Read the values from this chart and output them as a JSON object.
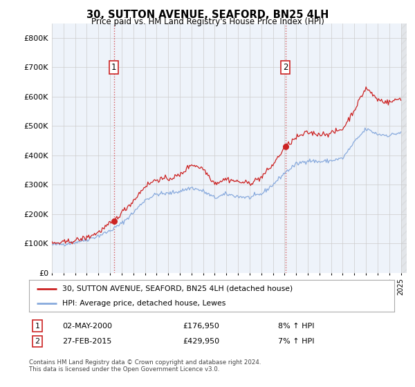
{
  "title": "30, SUTTON AVENUE, SEAFORD, BN25 4LH",
  "subtitle": "Price paid vs. HM Land Registry's House Price Index (HPI)",
  "legend_line1": "30, SUTTON AVENUE, SEAFORD, BN25 4LH (detached house)",
  "legend_line2": "HPI: Average price, detached house, Lewes",
  "annotation1_date": "02-MAY-2000",
  "annotation1_price": "£176,950",
  "annotation1_hpi": "8% ↑ HPI",
  "annotation2_date": "27-FEB-2015",
  "annotation2_price": "£429,950",
  "annotation2_hpi": "7% ↑ HPI",
  "footer": "Contains HM Land Registry data © Crown copyright and database right 2024.\nThis data is licensed under the Open Government Licence v3.0.",
  "red_color": "#cc2222",
  "blue_color": "#88aadd",
  "background_color": "#eef3fa",
  "grid_color": "#cccccc",
  "sale1_year": 2000.33,
  "sale1_value": 176950,
  "sale2_year": 2015.08,
  "sale2_value": 429950,
  "hpi_key_years": [
    1995,
    1996,
    1997,
    1998,
    1999,
    2000,
    2001,
    2002,
    2003,
    2004,
    2005,
    2006,
    2007,
    2008,
    2009,
    2010,
    2011,
    2012,
    2013,
    2014,
    2015,
    2016,
    2017,
    2018,
    2019,
    2020,
    2021,
    2022,
    2023,
    2024,
    2025
  ],
  "hpi_key_vals": [
    95000,
    98000,
    104000,
    113000,
    126000,
    143000,
    168000,
    205000,
    248000,
    268000,
    270000,
    278000,
    290000,
    278000,
    255000,
    268000,
    260000,
    256000,
    268000,
    300000,
    340000,
    370000,
    383000,
    378000,
    382000,
    390000,
    445000,
    490000,
    472000,
    468000,
    478000
  ],
  "red_key_years": [
    1995,
    1996,
    1997,
    1998,
    1999,
    2000.33,
    2001,
    2002,
    2003,
    2004,
    2005,
    2006,
    2007,
    2008,
    2009,
    2010,
    2011,
    2012,
    2013,
    2014,
    2015.08,
    2016,
    2017,
    2018,
    2019,
    2020,
    2021,
    2022,
    2023,
    2024,
    2025
  ],
  "red_key_vals": [
    100000,
    103000,
    110000,
    120000,
    138000,
    176950,
    205000,
    245000,
    295000,
    318000,
    320000,
    332000,
    370000,
    355000,
    305000,
    320000,
    310000,
    305000,
    325000,
    368000,
    429950,
    460000,
    478000,
    472000,
    475000,
    490000,
    555000,
    630000,
    590000,
    580000,
    595000
  ],
  "yticks": [
    0,
    100000,
    200000,
    300000,
    400000,
    500000,
    600000,
    700000,
    800000
  ],
  "ytick_labels": [
    "£0",
    "£100K",
    "£200K",
    "£300K",
    "£400K",
    "£500K",
    "£600K",
    "£700K",
    "£800K"
  ],
  "ylim_max": 850000
}
